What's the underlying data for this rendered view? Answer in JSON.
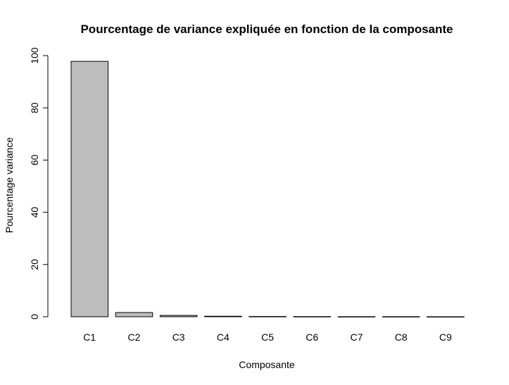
{
  "chart_data": {
    "type": "bar",
    "title": "Pourcentage de variance expliquée en fonction de la composante",
    "xlabel": "Composante",
    "ylabel": "Pourcentage variance",
    "categories": [
      "C1",
      "C2",
      "C3",
      "C4",
      "C5",
      "C6",
      "C7",
      "C8",
      "C9"
    ],
    "values": [
      97.8,
      1.6,
      0.5,
      0.2,
      0.1,
      0.05,
      0.03,
      0.02,
      0.01
    ],
    "ylim": [
      0,
      100
    ],
    "yticks": [
      "0",
      "20",
      "40",
      "60",
      "80",
      "100"
    ],
    "grid": false,
    "legend": "none",
    "bar_color": "#bebebe"
  }
}
